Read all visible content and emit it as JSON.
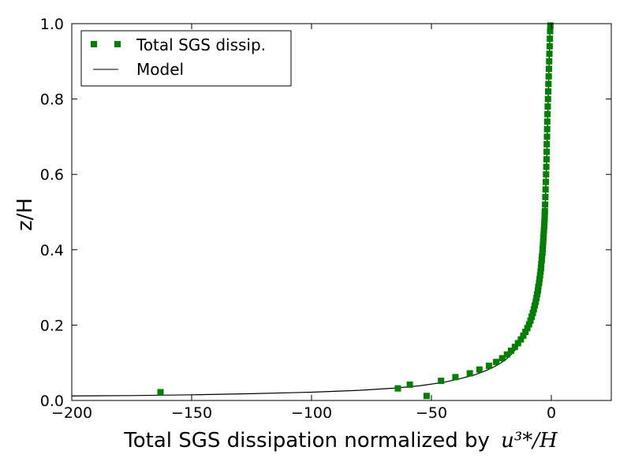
{
  "chart_data": {
    "type": "scatter",
    "title": "",
    "xlabel": "Total SGS dissipation normalized by",
    "xlabel_math": "u³*/H",
    "ylabel": "z/H",
    "xlim": [
      -200,
      25
    ],
    "ylim": [
      0.0,
      1.0
    ],
    "x_ticks": [
      -200,
      -150,
      -100,
      -50,
      0
    ],
    "x_tick_labels": [
      "−200",
      "−150",
      "−100",
      "−50",
      "0"
    ],
    "y_ticks": [
      0.0,
      0.2,
      0.4,
      0.6,
      0.8,
      1.0
    ],
    "y_tick_labels": [
      "0.0",
      "0.2",
      "0.4",
      "0.6",
      "0.8",
      "1.0"
    ],
    "grid": false,
    "legend": {
      "position": "top-left"
    },
    "series": [
      {
        "name": "Total SGS dissip.",
        "kind": "markers",
        "marker": "square",
        "color": "#007f00",
        "points": [
          [
            -163,
            0.022
          ],
          [
            -64,
            0.032
          ],
          [
            -59,
            0.042
          ],
          [
            -52,
            0.012
          ],
          [
            -46,
            0.052
          ],
          [
            -40,
            0.062
          ],
          [
            -34,
            0.072
          ],
          [
            -30,
            0.082
          ],
          [
            -26,
            0.092
          ],
          [
            -23,
            0.102
          ],
          [
            -20.5,
            0.112
          ],
          [
            -18.5,
            0.122
          ],
          [
            -16.8,
            0.132
          ],
          [
            -15.2,
            0.142
          ],
          [
            -13.9,
            0.152
          ],
          [
            -12.7,
            0.162
          ],
          [
            -11.7,
            0.172
          ],
          [
            -10.8,
            0.182
          ],
          [
            -10.0,
            0.192
          ],
          [
            -9.3,
            0.202
          ],
          [
            -8.7,
            0.212
          ],
          [
            -8.2,
            0.222
          ],
          [
            -7.7,
            0.232
          ],
          [
            -7.3,
            0.242
          ],
          [
            -6.9,
            0.252
          ],
          [
            -6.5,
            0.262
          ],
          [
            -6.2,
            0.272
          ],
          [
            -5.9,
            0.282
          ],
          [
            -5.6,
            0.292
          ],
          [
            -5.4,
            0.302
          ],
          [
            -5.1,
            0.312
          ],
          [
            -4.9,
            0.322
          ],
          [
            -4.7,
            0.332
          ],
          [
            -4.5,
            0.342
          ],
          [
            -4.3,
            0.352
          ],
          [
            -4.2,
            0.362
          ],
          [
            -4.0,
            0.372
          ],
          [
            -3.9,
            0.382
          ],
          [
            -3.7,
            0.392
          ],
          [
            -3.6,
            0.402
          ],
          [
            -3.5,
            0.412
          ],
          [
            -3.4,
            0.422
          ],
          [
            -3.3,
            0.432
          ],
          [
            -3.2,
            0.442
          ],
          [
            -3.1,
            0.452
          ],
          [
            -3.0,
            0.462
          ],
          [
            -2.9,
            0.472
          ],
          [
            -2.8,
            0.482
          ],
          [
            -2.75,
            0.492
          ],
          [
            -2.7,
            0.502
          ],
          [
            -2.6,
            0.52
          ],
          [
            -2.5,
            0.54
          ],
          [
            -2.4,
            0.56
          ],
          [
            -2.3,
            0.58
          ],
          [
            -2.2,
            0.6
          ],
          [
            -2.1,
            0.62
          ],
          [
            -2.0,
            0.64
          ],
          [
            -1.95,
            0.66
          ],
          [
            -1.9,
            0.68
          ],
          [
            -1.8,
            0.7
          ],
          [
            -1.75,
            0.72
          ],
          [
            -1.7,
            0.74
          ],
          [
            -1.6,
            0.76
          ],
          [
            -1.5,
            0.78
          ],
          [
            -1.4,
            0.8
          ],
          [
            -1.3,
            0.82
          ],
          [
            -1.2,
            0.84
          ],
          [
            -1.1,
            0.86
          ],
          [
            -1.0,
            0.88
          ],
          [
            -0.9,
            0.9
          ],
          [
            -0.8,
            0.92
          ],
          [
            -0.7,
            0.94
          ],
          [
            -0.6,
            0.96
          ],
          [
            -0.5,
            0.98
          ],
          [
            -0.4,
            0.995
          ]
        ]
      },
      {
        "name": "Model",
        "kind": "line",
        "color": "#000000",
        "points": [
          [
            -200,
            0.012
          ],
          [
            -175,
            0.013
          ],
          [
            -150,
            0.015
          ],
          [
            -125,
            0.018
          ],
          [
            -100,
            0.022
          ],
          [
            -80,
            0.027
          ],
          [
            -65,
            0.033
          ],
          [
            -55,
            0.039
          ],
          [
            -45,
            0.048
          ],
          [
            -38,
            0.058
          ],
          [
            -32,
            0.068
          ],
          [
            -27,
            0.08
          ],
          [
            -23,
            0.092
          ],
          [
            -19.5,
            0.106
          ],
          [
            -17,
            0.12
          ],
          [
            -15,
            0.135
          ],
          [
            -13,
            0.152
          ],
          [
            -11.5,
            0.17
          ],
          [
            -10.2,
            0.19
          ],
          [
            -9,
            0.21
          ],
          [
            -8,
            0.23
          ],
          [
            -7.2,
            0.25
          ],
          [
            -6.5,
            0.27
          ],
          [
            -5.9,
            0.29
          ],
          [
            -5.4,
            0.31
          ],
          [
            -4.9,
            0.33
          ],
          [
            -4.5,
            0.35
          ],
          [
            -4.1,
            0.37
          ],
          [
            -3.8,
            0.39
          ],
          [
            -3.5,
            0.41
          ],
          [
            -3.3,
            0.43
          ],
          [
            -3.1,
            0.45
          ],
          [
            -2.9,
            0.47
          ],
          [
            -2.7,
            0.5
          ],
          [
            -2.5,
            0.53
          ],
          [
            -2.3,
            0.57
          ],
          [
            -2.1,
            0.61
          ],
          [
            -1.9,
            0.65
          ],
          [
            -1.7,
            0.7
          ],
          [
            -1.5,
            0.75
          ],
          [
            -1.3,
            0.8
          ],
          [
            -1.1,
            0.85
          ],
          [
            -0.9,
            0.9
          ],
          [
            -0.7,
            0.95
          ],
          [
            -0.5,
            1.0
          ]
        ]
      }
    ]
  }
}
